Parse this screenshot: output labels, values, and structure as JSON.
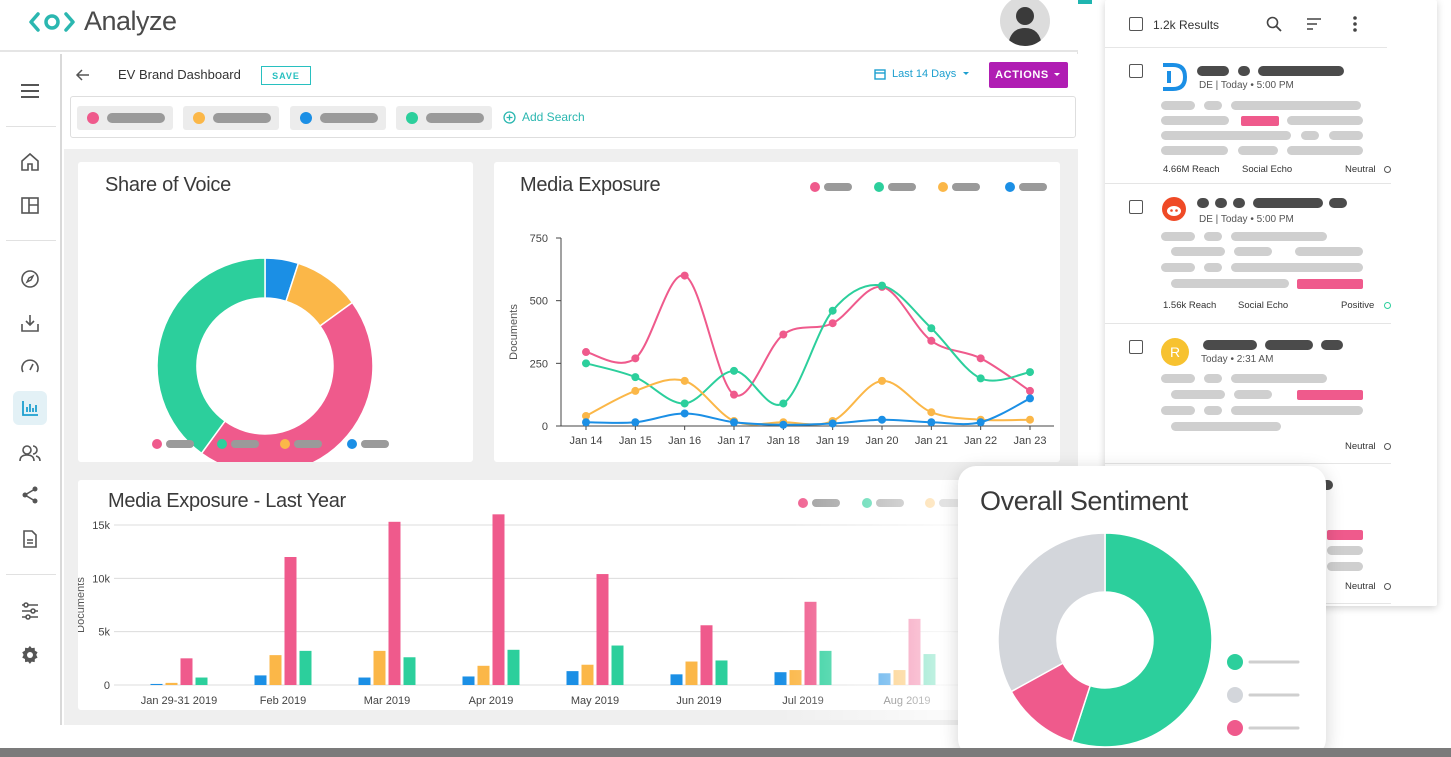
{
  "app": {
    "name": "Analyze"
  },
  "dashboard": {
    "title": "EV Brand Dashboard",
    "save_label": "SAVE",
    "date_range": "Last 14 Days",
    "actions_label": "ACTIONS",
    "add_search_label": "Add Search",
    "search_chips": [
      {
        "color": "#ef5a8c"
      },
      {
        "color": "#fbb748"
      },
      {
        "color": "#1b8fe5"
      },
      {
        "color": "#2ccf9c"
      }
    ]
  },
  "colors": {
    "pink": "#ef5a8c",
    "green": "#2ccf9c",
    "orange": "#fbb748",
    "blue": "#1b8fe5",
    "grey": "#d3d6db",
    "accent": "#b01db3",
    "teal": "#2bb7b0"
  },
  "cards": {
    "share_of_voice": {
      "title": "Share of Voice"
    },
    "media_exposure": {
      "title": "Media Exposure"
    },
    "media_exposure_year": {
      "title": "Media Exposure - Last Year"
    },
    "overall_sentiment": {
      "title": "Overall Sentiment"
    }
  },
  "chart_data": [
    {
      "type": "pie",
      "title": "Share of Voice",
      "slices": [
        {
          "color": "#1b8fe5",
          "value": 5
        },
        {
          "color": "#fbb748",
          "value": 10
        },
        {
          "color": "#ef5a8c",
          "value": 45
        },
        {
          "color": "#2ccf9c",
          "value": 40
        }
      ]
    },
    {
      "type": "line",
      "title": "Media Exposure",
      "ylabel": "Documents",
      "ylim": [
        0,
        750
      ],
      "yticks": [
        0,
        250,
        500,
        750
      ],
      "categories": [
        "Jan 14",
        "Jan 15",
        "Jan 16",
        "Jan 17",
        "Jan 18",
        "Jan 19",
        "Jan 20",
        "Jan 21",
        "Jan 22",
        "Jan 23"
      ],
      "series": [
        {
          "color": "#ef5a8c",
          "values": [
            295,
            270,
            600,
            125,
            365,
            410,
            555,
            340,
            270,
            140
          ]
        },
        {
          "color": "#2ccf9c",
          "values": [
            250,
            195,
            90,
            220,
            90,
            460,
            560,
            390,
            190,
            215
          ]
        },
        {
          "color": "#fbb748",
          "values": [
            40,
            140,
            180,
            20,
            15,
            20,
            180,
            55,
            25,
            25
          ]
        },
        {
          "color": "#1b8fe5",
          "values": [
            15,
            15,
            50,
            15,
            5,
            10,
            25,
            15,
            15,
            110
          ]
        }
      ]
    },
    {
      "type": "bar",
      "title": "Media Exposure - Last Year",
      "ylabel": "Documents",
      "ylim": [
        0,
        15000
      ],
      "yticks": [
        "0",
        "5k",
        "10k",
        "15k"
      ],
      "categories": [
        "Jan 29-31 2019",
        "Feb 2019",
        "Mar 2019",
        "Apr 2019",
        "May 2019",
        "Jun 2019",
        "Jul 2019",
        "Aug 2019"
      ],
      "series": [
        {
          "color": "#1b8fe5",
          "values": [
            100,
            900,
            700,
            800,
            1300,
            1000,
            1200,
            1100
          ]
        },
        {
          "color": "#fbb748",
          "values": [
            200,
            2800,
            3200,
            1800,
            1900,
            2200,
            1400,
            1400
          ]
        },
        {
          "color": "#ef5a8c",
          "values": [
            2500,
            12000,
            15300,
            16000,
            10400,
            5600,
            7800,
            6200
          ]
        },
        {
          "color": "#2ccf9c",
          "values": [
            700,
            3200,
            2600,
            3300,
            3700,
            2300,
            3200,
            2900
          ]
        }
      ]
    },
    {
      "type": "pie",
      "title": "Overall Sentiment",
      "slices": [
        {
          "color": "#2ccf9c",
          "value": 55
        },
        {
          "color": "#ef5a8c",
          "value": 12
        },
        {
          "color": "#d3d6db",
          "value": 33
        }
      ]
    }
  ],
  "results": {
    "count_label": "1.2k Results",
    "items": [
      {
        "meta": "DE | Today • 5:00 PM",
        "reach": "4.66M Reach",
        "echo": "Social Echo",
        "sentiment": "Neutral",
        "sentiment_color": "#777777"
      },
      {
        "meta": "DE | Today • 5:00 PM",
        "reach": "1.56k Reach",
        "echo": "Social Echo",
        "sentiment": "Positive",
        "sentiment_color": "#2ccf9c"
      },
      {
        "meta": "Today • 2:31 AM",
        "avatar_letter": "R",
        "sentiment": "Neutral",
        "sentiment_color": "#777777"
      },
      {
        "sentiment": "Neutral",
        "sentiment_color": "#777777"
      }
    ]
  },
  "sentiment_legend": [
    {
      "color": "#2ccf9c"
    },
    {
      "color": "#d3d6db"
    },
    {
      "color": "#ef5a8c"
    }
  ]
}
